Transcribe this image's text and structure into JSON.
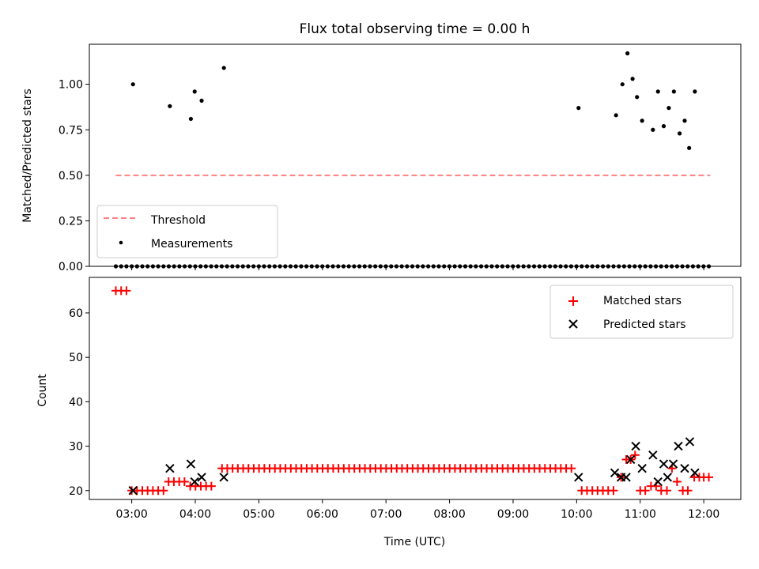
{
  "chart_data": [
    {
      "type": "scatter",
      "title": "Flux total observing time = 0.00 h",
      "xlabel": "",
      "ylabel": "Matched/Predicted stars",
      "xlim": [
        2.333,
        12.583
      ],
      "ylim": [
        0.0,
        1.22
      ],
      "x_ticks": [
        3,
        4,
        5,
        6,
        7,
        8,
        9,
        10,
        11,
        12
      ],
      "y_ticks": [
        0.0,
        0.25,
        0.5,
        0.75,
        1.0
      ],
      "y_tick_labels": [
        "0.00",
        "0.25",
        "0.50",
        "0.75",
        "1.00"
      ],
      "grid": false,
      "legend_position": "lower-left",
      "legend": [
        {
          "label": "Threshold",
          "style": "dashed-line",
          "color": "#ff8080"
        },
        {
          "label": "Measurements",
          "style": "dot",
          "color": "#000000"
        }
      ],
      "series": [
        {
          "name": "Threshold",
          "kind": "line",
          "color": "#ff8080",
          "x": [
            2.75,
            12.1
          ],
          "y": [
            0.5,
            0.5
          ]
        },
        {
          "name": "Measurements",
          "kind": "scatter",
          "color": "#000000",
          "x": [
            3.02,
            3.6,
            3.93,
            3.99,
            4.1,
            4.45,
            10.03,
            10.62,
            10.72,
            10.8,
            10.88,
            10.95,
            11.03,
            11.2,
            11.28,
            11.37,
            11.45,
            11.53,
            11.62,
            11.7,
            11.77,
            11.86
          ],
          "y": [
            1.0,
            0.88,
            0.81,
            0.96,
            0.91,
            1.09,
            0.87,
            0.83,
            1.0,
            1.17,
            1.03,
            0.93,
            0.8,
            0.75,
            0.96,
            0.77,
            0.87,
            0.96,
            0.73,
            0.8,
            0.65,
            0.96
          ]
        },
        {
          "name": "Measurements (zero)",
          "kind": "scatter",
          "color": "#000000",
          "x_start": 2.75,
          "x_end": 12.1,
          "x_step": 0.0833,
          "y": 0.0
        }
      ]
    },
    {
      "type": "scatter",
      "title": "",
      "xlabel": "Time (UTC)",
      "ylabel": "Count",
      "xlim": [
        2.333,
        12.583
      ],
      "ylim": [
        18,
        68
      ],
      "x_ticks": [
        3,
        4,
        5,
        6,
        7,
        8,
        9,
        10,
        11,
        12
      ],
      "x_tick_labels": [
        "03:00",
        "04:00",
        "05:00",
        "06:00",
        "07:00",
        "08:00",
        "09:00",
        "10:00",
        "11:00",
        "12:00"
      ],
      "y_ticks": [
        20,
        30,
        40,
        50,
        60
      ],
      "y_tick_labels": [
        "20",
        "30",
        "40",
        "50",
        "60"
      ],
      "grid": false,
      "legend_position": "upper-right",
      "legend": [
        {
          "label": "Matched stars",
          "marker": "plus",
          "color": "#ff0000"
        },
        {
          "label": "Predicted stars",
          "marker": "x",
          "color": "#000000"
        }
      ],
      "series": [
        {
          "name": "Matched stars",
          "marker": "plus",
          "color": "#ff0000",
          "segments": [
            {
              "x_start": 2.75,
              "x_end": 2.92,
              "y": 65
            },
            {
              "x_start": 3.0,
              "x_end": 3.5,
              "y": 20
            },
            {
              "x_start": 3.58,
              "x_end": 3.83,
              "y": 22
            },
            {
              "x_start": 3.92,
              "x_end": 4.33,
              "y": 21
            },
            {
              "x_start": 4.42,
              "x_end": 10.0,
              "y": 25
            },
            {
              "x_start": 10.08,
              "x_end": 10.62,
              "y": 20
            }
          ],
          "x": [
            10.7,
            10.78,
            10.85,
            10.92,
            11.0,
            11.08,
            11.17,
            11.25,
            11.33,
            11.42,
            11.5,
            11.58,
            11.67,
            11.75,
            11.85,
            11.93,
            12.0,
            12.08
          ],
          "y": [
            23,
            27,
            27,
            28,
            20,
            20,
            21,
            21,
            20,
            20,
            25,
            22,
            20,
            20,
            23,
            23,
            23,
            23
          ]
        },
        {
          "name": "Predicted stars",
          "marker": "x",
          "color": "#000000",
          "x": [
            3.02,
            3.6,
            3.93,
            3.99,
            4.1,
            4.45,
            10.03,
            10.6,
            10.7,
            10.78,
            10.85,
            10.93,
            11.03,
            11.2,
            11.28,
            11.37,
            11.43,
            11.52,
            11.6,
            11.7,
            11.78,
            11.86
          ],
          "y": [
            20,
            25,
            26,
            22,
            23,
            23,
            23,
            24,
            23,
            23,
            27,
            30,
            25,
            28,
            22,
            26,
            23,
            26,
            30,
            25,
            31,
            24
          ]
        }
      ]
    }
  ]
}
